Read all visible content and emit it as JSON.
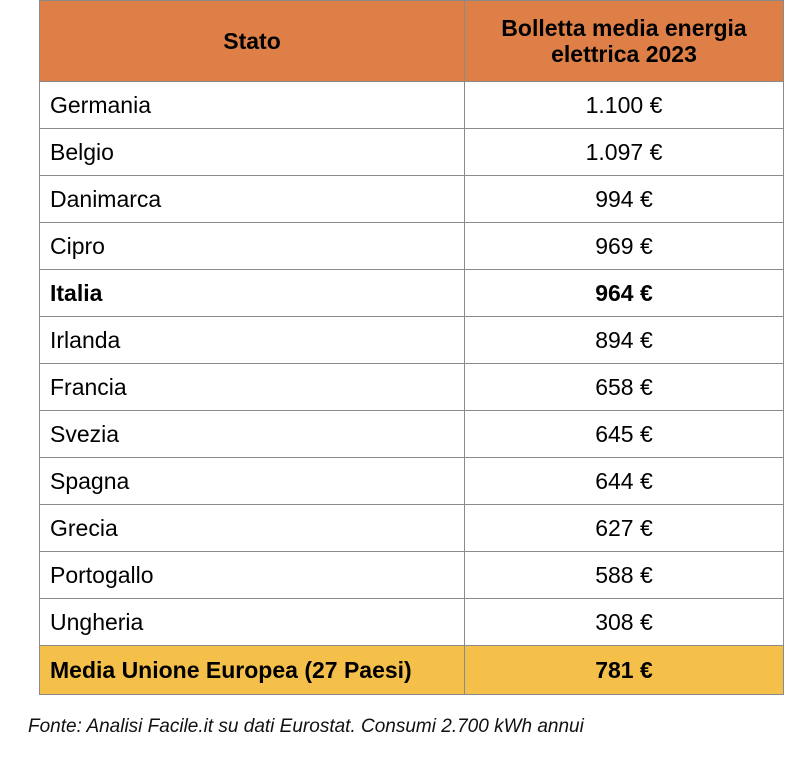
{
  "table": {
    "header_state": "Stato",
    "header_bill_line1": "Bolletta media energia",
    "header_bill_line2": "elettrica 2023",
    "rows": [
      {
        "state": "Germania",
        "value": "1.100 €"
      },
      {
        "state": "Belgio",
        "value": "1.097 €"
      },
      {
        "state": "Danimarca",
        "value": "994 €"
      },
      {
        "state": "Cipro",
        "value": "969 €"
      },
      {
        "state": "Italia",
        "value": "964 €"
      },
      {
        "state": "Irlanda",
        "value": "894 €"
      },
      {
        "state": "Francia",
        "value": "658 €"
      },
      {
        "state": "Svezia",
        "value": "645 €"
      },
      {
        "state": "Spagna",
        "value": "644 €"
      },
      {
        "state": "Grecia",
        "value": "627 €"
      },
      {
        "state": "Portogallo",
        "value": "588 €"
      },
      {
        "state": "Ungheria",
        "value": "308 €"
      }
    ],
    "total": {
      "state": "Media Unione Europea (27 Paesi)",
      "value": "781 €"
    }
  },
  "source": "Fonte: Analisi Facile.it su dati Eurostat. Consumi 2.700 kWh annui",
  "colors": {
    "header": "#de7f48",
    "total_row": "#f4c04a",
    "border": "#8a8a8a"
  }
}
